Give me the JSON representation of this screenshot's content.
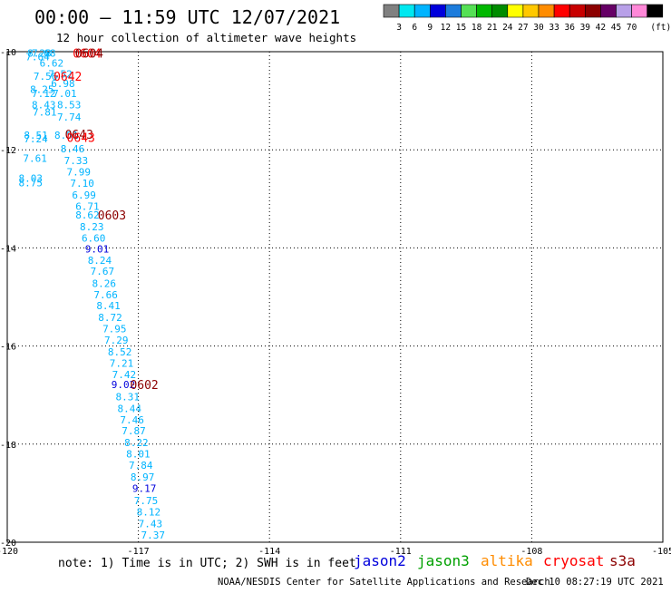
{
  "header": {
    "title": "00:00 — 11:59 UTC 12/07/2021",
    "subtitle": "12 hour collection of altimeter wave heights"
  },
  "legend_scale": {
    "colors": [
      "#808080",
      "#00e8f0",
      "#00b4ff",
      "#0000dc",
      "#1c7cdc",
      "#55e055",
      "#00b800",
      "#008c00",
      "#ffff00",
      "#ffc800",
      "#ff8c00",
      "#ff0000",
      "#c80000",
      "#8c0000",
      "#660066",
      "#b8a0e8",
      "#ff88d8",
      "#000000"
    ],
    "labels": [
      "3",
      "6",
      "9",
      "12",
      "15",
      "18",
      "21",
      "24",
      "27",
      "30",
      "33",
      "36",
      "39",
      "42",
      "45",
      "70"
    ],
    "unit": "(ft)"
  },
  "footer": {
    "note": "note:  1) Time is in UTC; 2) SWH is in feet",
    "credit": "NOAA/NESDIS Center for Satellite Applications and Research",
    "timestamp": "Dec 10 08:27:19 UTC 2021",
    "satellites": [
      {
        "name": "jason2",
        "color": "#0000dc"
      },
      {
        "name": "jason3",
        "color": "#00a000"
      },
      {
        "name": "altika",
        "color": "#ff8c00"
      },
      {
        "name": "cryosat",
        "color": "#ff0000"
      },
      {
        "name": "s3a",
        "color": "#8c0000"
      }
    ]
  },
  "chart_data": {
    "type": "scatter",
    "title": "",
    "xlabel": "",
    "ylabel": "",
    "xlim": [
      -120,
      -105
    ],
    "ylim": [
      -20,
      -10
    ],
    "xticks": [
      {
        "value": -120,
        "label": "-120"
      },
      {
        "value": -117,
        "label": "-117"
      },
      {
        "value": -114,
        "label": "-114"
      },
      {
        "value": -111,
        "label": "-111"
      },
      {
        "value": -108,
        "label": "-108"
      },
      {
        "value": -105,
        "label": "-105"
      }
    ],
    "yticks": [
      {
        "value": -10,
        "label": "-10"
      },
      {
        "value": -12,
        "label": "-12"
      },
      {
        "value": -14,
        "label": "-14"
      },
      {
        "value": -16,
        "label": "-16"
      },
      {
        "value": -18,
        "label": "-18"
      },
      {
        "value": -20,
        "label": "-20"
      }
    ],
    "grid": true,
    "points": [
      {
        "x": -119.54,
        "y": -10.03,
        "label": "8.28",
        "color": "#00b4ff"
      },
      {
        "x": -119.44,
        "y": -10.03,
        "label": "7.68",
        "color": "#00b4ff"
      },
      {
        "x": -119.58,
        "y": -10.1,
        "label": "7.64",
        "color": "#00b4ff"
      },
      {
        "x": -119.26,
        "y": -10.23,
        "label": "6.62",
        "color": "#00b4ff"
      },
      {
        "x": -119.06,
        "y": -10.45,
        "label": "7.52",
        "color": "#00b4ff"
      },
      {
        "x": -119.4,
        "y": -10.5,
        "label": "7.56",
        "color": "#00b4ff"
      },
      {
        "x": -119.0,
        "y": -10.65,
        "label": "6.98",
        "color": "#00b4ff"
      },
      {
        "x": -119.48,
        "y": -10.77,
        "label": "8.25",
        "color": "#00b4ff"
      },
      {
        "x": -118.96,
        "y": -10.85,
        "label": "7.01",
        "color": "#00b4ff"
      },
      {
        "x": -119.44,
        "y": -10.85,
        "label": "7.12",
        "color": "#00b4ff"
      },
      {
        "x": -118.86,
        "y": -11.08,
        "label": "8.53",
        "color": "#00b4ff"
      },
      {
        "x": -119.44,
        "y": -11.08,
        "label": "8.43",
        "color": "#00b4ff"
      },
      {
        "x": -119.42,
        "y": -11.23,
        "label": "7.81",
        "color": "#00b4ff"
      },
      {
        "x": -118.86,
        "y": -11.33,
        "label": "7.74",
        "color": "#00b4ff"
      },
      {
        "x": -119.62,
        "y": -11.7,
        "label": "8.51",
        "color": "#00b4ff"
      },
      {
        "x": -119.62,
        "y": -11.77,
        "label": "7.24",
        "color": "#00b4ff"
      },
      {
        "x": -118.92,
        "y": -11.7,
        "label": "8.51",
        "color": "#00b4ff"
      },
      {
        "x": -118.78,
        "y": -11.98,
        "label": "8.46",
        "color": "#00b4ff"
      },
      {
        "x": -119.64,
        "y": -12.17,
        "label": "7.61",
        "color": "#00b4ff"
      },
      {
        "x": -118.7,
        "y": -12.22,
        "label": "7.33",
        "color": "#00b4ff"
      },
      {
        "x": -118.64,
        "y": -12.45,
        "label": "7.99",
        "color": "#00b4ff"
      },
      {
        "x": -119.74,
        "y": -12.58,
        "label": "8.03",
        "color": "#00b4ff"
      },
      {
        "x": -119.74,
        "y": -12.67,
        "label": "8.75",
        "color": "#00b4ff"
      },
      {
        "x": -118.56,
        "y": -12.68,
        "label": "7.10",
        "color": "#00b4ff"
      },
      {
        "x": -118.52,
        "y": -12.92,
        "label": "6.99",
        "color": "#00b4ff"
      },
      {
        "x": -118.44,
        "y": -13.15,
        "label": "6.71",
        "color": "#00b4ff"
      },
      {
        "x": -118.44,
        "y": -13.33,
        "label": "8.62",
        "color": "#00b4ff"
      },
      {
        "x": -118.34,
        "y": -13.57,
        "label": "8.23",
        "color": "#00b4ff"
      },
      {
        "x": -118.3,
        "y": -13.8,
        "label": "6.60",
        "color": "#00b4ff"
      },
      {
        "x": -118.22,
        "y": -14.02,
        "label": "9.01",
        "color": "#0000dc"
      },
      {
        "x": -118.16,
        "y": -14.25,
        "label": "8.24",
        "color": "#00b4ff"
      },
      {
        "x": -118.1,
        "y": -14.47,
        "label": "7.67",
        "color": "#00b4ff"
      },
      {
        "x": -118.06,
        "y": -14.72,
        "label": "8.26",
        "color": "#00b4ff"
      },
      {
        "x": -118.02,
        "y": -14.95,
        "label": "7.66",
        "color": "#00b4ff"
      },
      {
        "x": -117.96,
        "y": -15.18,
        "label": "8.41",
        "color": "#00b4ff"
      },
      {
        "x": -117.92,
        "y": -15.42,
        "label": "8.72",
        "color": "#00b4ff"
      },
      {
        "x": -117.82,
        "y": -15.65,
        "label": "7.95",
        "color": "#00b4ff"
      },
      {
        "x": -117.78,
        "y": -15.88,
        "label": "7.29",
        "color": "#00b4ff"
      },
      {
        "x": -117.7,
        "y": -16.12,
        "label": "8.52",
        "color": "#00b4ff"
      },
      {
        "x": -117.66,
        "y": -16.35,
        "label": "7.21",
        "color": "#00b4ff"
      },
      {
        "x": -117.6,
        "y": -16.58,
        "label": "7.42",
        "color": "#00b4ff"
      },
      {
        "x": -117.62,
        "y": -16.78,
        "label": "9.02",
        "color": "#0000dc"
      },
      {
        "x": -117.52,
        "y": -17.03,
        "label": "8.31",
        "color": "#00b4ff"
      },
      {
        "x": -117.48,
        "y": -17.27,
        "label": "8.44",
        "color": "#00b4ff"
      },
      {
        "x": -117.42,
        "y": -17.5,
        "label": "7.46",
        "color": "#00b4ff"
      },
      {
        "x": -117.38,
        "y": -17.73,
        "label": "7.87",
        "color": "#00b4ff"
      },
      {
        "x": -117.32,
        "y": -17.97,
        "label": "8.22",
        "color": "#00b4ff"
      },
      {
        "x": -117.28,
        "y": -18.2,
        "label": "8.01",
        "color": "#00b4ff"
      },
      {
        "x": -117.22,
        "y": -18.43,
        "label": "7.84",
        "color": "#00b4ff"
      },
      {
        "x": -117.18,
        "y": -18.67,
        "label": "8.97",
        "color": "#00b4ff"
      },
      {
        "x": -117.14,
        "y": -18.9,
        "label": "9.17",
        "color": "#0000dc"
      },
      {
        "x": -117.1,
        "y": -19.15,
        "label": "7.75",
        "color": "#00b4ff"
      },
      {
        "x": -117.04,
        "y": -19.38,
        "label": "8.12",
        "color": "#00b4ff"
      },
      {
        "x": -117.0,
        "y": -19.62,
        "label": "7.43",
        "color": "#00b4ff"
      },
      {
        "x": -116.94,
        "y": -19.85,
        "label": "7.37",
        "color": "#00b4ff"
      }
    ],
    "time_labels": [
      {
        "x": -118.5,
        "y": -10.03,
        "label": "0604",
        "color": "#ff0000"
      },
      {
        "x": -118.45,
        "y": -10.03,
        "label": "0604",
        "color": "#8c0000"
      },
      {
        "x": -118.94,
        "y": -10.5,
        "label": "0642",
        "color": "#ff0000"
      },
      {
        "x": -118.68,
        "y": -11.68,
        "label": "0643",
        "color": "#8c0000"
      },
      {
        "x": -118.64,
        "y": -11.75,
        "label": "0643",
        "color": "#ff0000"
      },
      {
        "x": -117.93,
        "y": -13.33,
        "label": "0603",
        "color": "#8c0000"
      },
      {
        "x": -117.19,
        "y": -16.78,
        "label": "0602",
        "color": "#8c0000"
      }
    ]
  }
}
